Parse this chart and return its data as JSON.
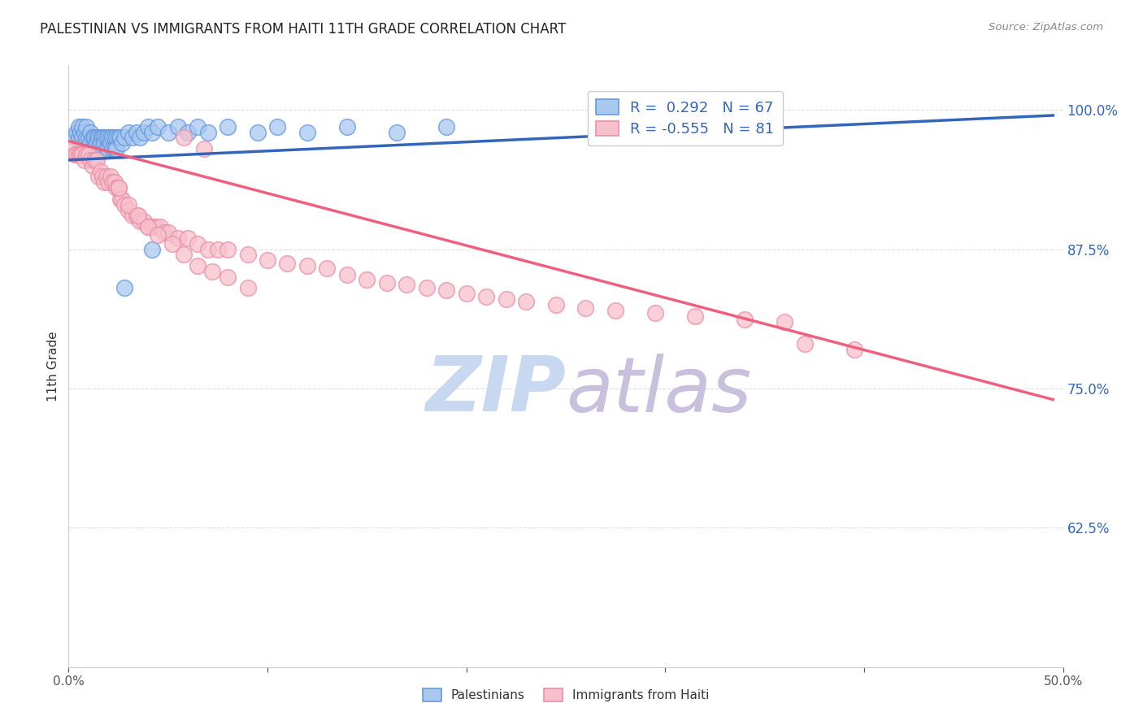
{
  "title": "PALESTINIAN VS IMMIGRANTS FROM HAITI 11TH GRADE CORRELATION CHART",
  "source": "Source: ZipAtlas.com",
  "ylabel": "11th Grade",
  "ytick_labels": [
    "100.0%",
    "87.5%",
    "75.0%",
    "62.5%"
  ],
  "ytick_values": [
    1.0,
    0.875,
    0.75,
    0.625
  ],
  "xmin": 0.0,
  "xmax": 0.5,
  "ymin": 0.5,
  "ymax": 1.04,
  "legend_r_blue": "R =  0.292",
  "legend_n_blue": "N = 67",
  "legend_r_pink": "R = -0.555",
  "legend_n_pink": "N = 81",
  "blue_color": "#A8C8F0",
  "blue_edge_color": "#6699DD",
  "pink_color": "#F8C0CC",
  "pink_edge_color": "#E890A8",
  "blue_line_color": "#3366BB",
  "pink_line_color": "#EE6080",
  "watermark_zip_color": "#C8D8F0",
  "watermark_atlas_color": "#C8C0DC",
  "blue_scatter_x": [
    0.003,
    0.004,
    0.005,
    0.005,
    0.006,
    0.007,
    0.007,
    0.008,
    0.008,
    0.009,
    0.009,
    0.01,
    0.01,
    0.011,
    0.011,
    0.012,
    0.012,
    0.013,
    0.013,
    0.014,
    0.014,
    0.015,
    0.015,
    0.016,
    0.016,
    0.017,
    0.017,
    0.018,
    0.018,
    0.019,
    0.019,
    0.02,
    0.02,
    0.021,
    0.021,
    0.022,
    0.022,
    0.023,
    0.023,
    0.024,
    0.024,
    0.025,
    0.026,
    0.027,
    0.028,
    0.03,
    0.032,
    0.034,
    0.036,
    0.038,
    0.04,
    0.042,
    0.045,
    0.05,
    0.055,
    0.06,
    0.065,
    0.07,
    0.08,
    0.095,
    0.105,
    0.12,
    0.14,
    0.165,
    0.19,
    0.028,
    0.042
  ],
  "blue_scatter_y": [
    0.975,
    0.98,
    0.985,
    0.975,
    0.98,
    0.985,
    0.975,
    0.98,
    0.97,
    0.975,
    0.985,
    0.975,
    0.965,
    0.98,
    0.97,
    0.975,
    0.965,
    0.975,
    0.965,
    0.975,
    0.97,
    0.975,
    0.965,
    0.975,
    0.97,
    0.975,
    0.965,
    0.975,
    0.97,
    0.975,
    0.965,
    0.975,
    0.965,
    0.975,
    0.97,
    0.975,
    0.965,
    0.975,
    0.965,
    0.975,
    0.965,
    0.975,
    0.975,
    0.97,
    0.975,
    0.98,
    0.975,
    0.98,
    0.975,
    0.98,
    0.985,
    0.98,
    0.985,
    0.98,
    0.985,
    0.98,
    0.985,
    0.98,
    0.985,
    0.98,
    0.985,
    0.98,
    0.985,
    0.98,
    0.985,
    0.84,
    0.875
  ],
  "pink_scatter_x": [
    0.002,
    0.003,
    0.004,
    0.005,
    0.006,
    0.007,
    0.008,
    0.009,
    0.01,
    0.011,
    0.012,
    0.013,
    0.014,
    0.015,
    0.016,
    0.017,
    0.018,
    0.019,
    0.02,
    0.021,
    0.022,
    0.023,
    0.024,
    0.025,
    0.026,
    0.027,
    0.028,
    0.03,
    0.032,
    0.034,
    0.036,
    0.038,
    0.04,
    0.042,
    0.044,
    0.046,
    0.048,
    0.05,
    0.055,
    0.06,
    0.065,
    0.07,
    0.075,
    0.08,
    0.09,
    0.1,
    0.11,
    0.12,
    0.13,
    0.14,
    0.15,
    0.16,
    0.17,
    0.18,
    0.19,
    0.2,
    0.21,
    0.22,
    0.23,
    0.245,
    0.26,
    0.275,
    0.295,
    0.315,
    0.34,
    0.36,
    0.025,
    0.03,
    0.035,
    0.04,
    0.045,
    0.052,
    0.058,
    0.065,
    0.072,
    0.08,
    0.09,
    0.058,
    0.068,
    0.37,
    0.395
  ],
  "pink_scatter_y": [
    0.965,
    0.96,
    0.96,
    0.96,
    0.96,
    0.96,
    0.955,
    0.96,
    0.96,
    0.955,
    0.95,
    0.955,
    0.955,
    0.94,
    0.945,
    0.94,
    0.935,
    0.94,
    0.935,
    0.94,
    0.935,
    0.935,
    0.93,
    0.93,
    0.92,
    0.92,
    0.915,
    0.91,
    0.905,
    0.905,
    0.9,
    0.9,
    0.895,
    0.895,
    0.895,
    0.895,
    0.89,
    0.89,
    0.885,
    0.885,
    0.88,
    0.875,
    0.875,
    0.875,
    0.87,
    0.865,
    0.862,
    0.86,
    0.858,
    0.852,
    0.848,
    0.845,
    0.843,
    0.84,
    0.838,
    0.835,
    0.832,
    0.83,
    0.828,
    0.825,
    0.822,
    0.82,
    0.818,
    0.815,
    0.812,
    0.81,
    0.93,
    0.915,
    0.905,
    0.895,
    0.888,
    0.88,
    0.87,
    0.86,
    0.855,
    0.85,
    0.84,
    0.975,
    0.965,
    0.79,
    0.785
  ],
  "blue_trendline_x": [
    0.0,
    0.495
  ],
  "blue_trendline_y": [
    0.955,
    0.995
  ],
  "pink_trendline_x": [
    0.0,
    0.495
  ],
  "pink_trendline_y": [
    0.972,
    0.74
  ],
  "grid_color": "#DDDDDD",
  "background_color": "#FFFFFF",
  "xtick_positions": [
    0.0,
    0.1,
    0.2,
    0.3,
    0.4,
    0.5
  ],
  "xtick_labels_edge": [
    "0.0%",
    "",
    "",
    "",
    "",
    "50.0%"
  ]
}
